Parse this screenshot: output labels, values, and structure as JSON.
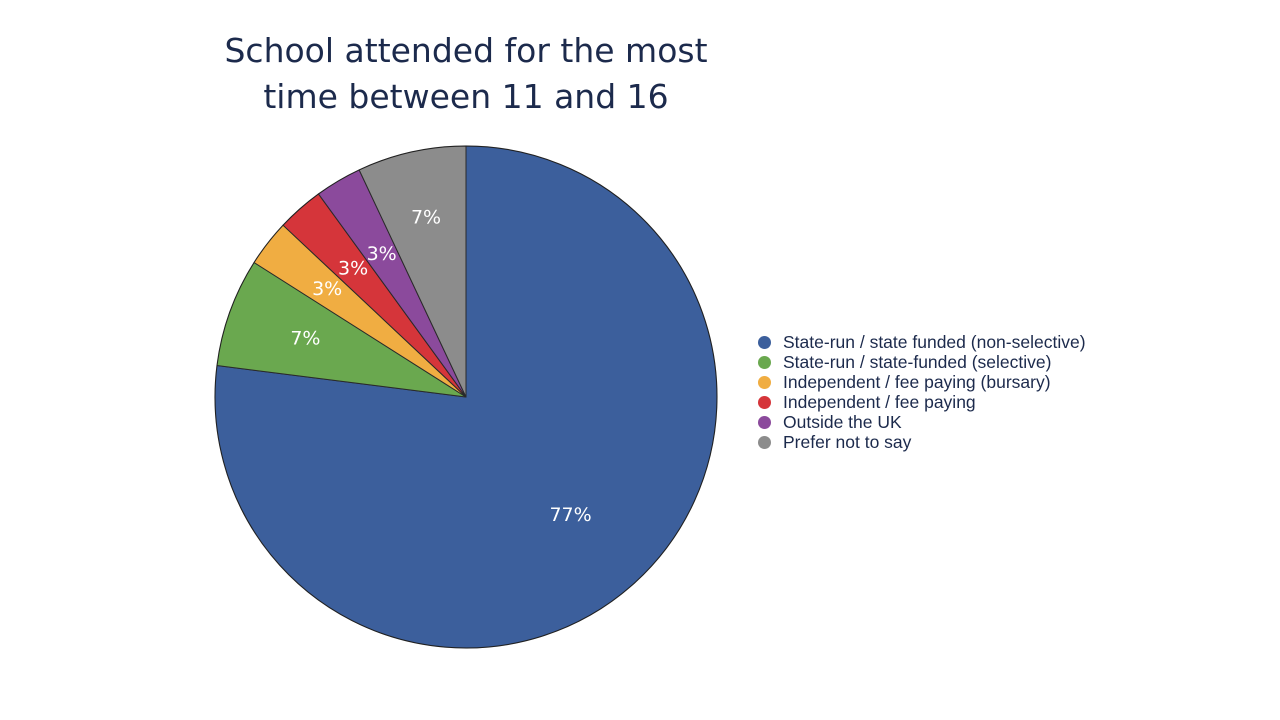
{
  "chart_data": {
    "type": "pie",
    "title_lines": [
      "School attended for the most",
      "time between 11 and 16"
    ],
    "slices": [
      {
        "name": "State-run / state funded (non-selective)",
        "value": 77,
        "label": "77%",
        "color": "#3c5f9c"
      },
      {
        "name": "State-run / state-funded (selective)",
        "value": 7,
        "label": "7%",
        "color": "#6aa84f"
      },
      {
        "name": "Independent / fee paying (bursary)",
        "value": 3,
        "label": "3%",
        "color": "#f0ad42"
      },
      {
        "name": "Independent / fee paying",
        "value": 3,
        "label": "3%",
        "color": "#d5353a"
      },
      {
        "name": "Outside the UK",
        "value": 3,
        "label": "3%",
        "color": "#8b4a9c"
      },
      {
        "name": "Prefer not to say",
        "value": 7,
        "label": "7%",
        "color": "#8c8c8c"
      }
    ],
    "legend_position": "right"
  }
}
